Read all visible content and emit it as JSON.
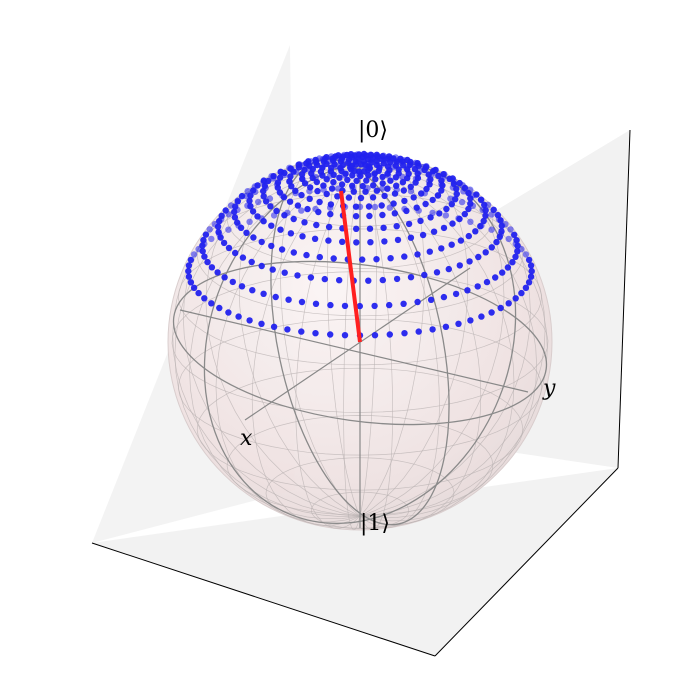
{
  "labels": {
    "north": "|0⟩",
    "south": "|1⟩",
    "x": "x",
    "y": "y"
  },
  "colors": {
    "points": "#2222ee",
    "vector": "#ff2020",
    "sphere_fill": "#f2e6e6",
    "pane": "#f2f2f2",
    "wire": "#888888",
    "pane_edge": "#000000"
  },
  "icons": {
    "points": "dot-marker",
    "vector": "arrow"
  }
}
